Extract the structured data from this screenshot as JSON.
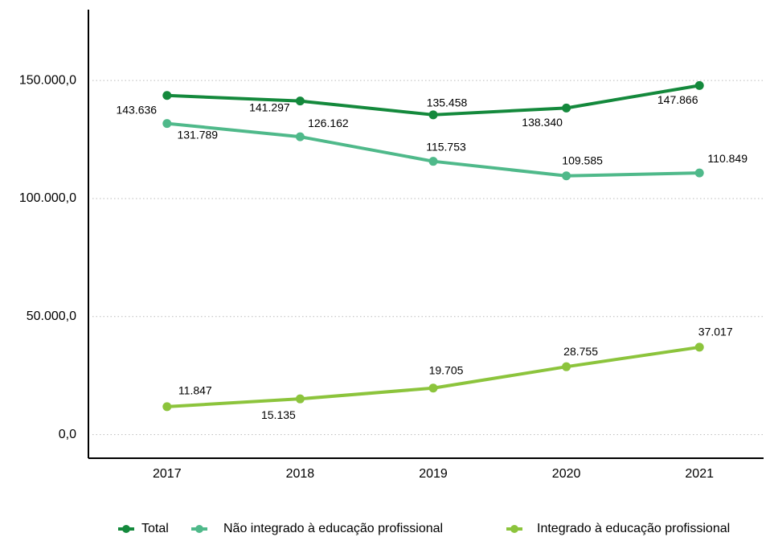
{
  "chart_data": {
    "type": "line",
    "categories": [
      "2017",
      "2018",
      "2019",
      "2020",
      "2021"
    ],
    "series": [
      {
        "name": "Total",
        "color": "#14893c",
        "values": [
          143636,
          141297,
          135458,
          138340,
          147866
        ],
        "value_labels": [
          "143.636",
          "141.297",
          "135.458",
          "138.340",
          "147.866"
        ]
      },
      {
        "name": "Não integrado à educação profissional",
        "color": "#4fb98a",
        "values": [
          131789,
          126162,
          115753,
          109585,
          110849
        ],
        "value_labels": [
          "131.789",
          "126.162",
          "115.753",
          "109.585",
          "110.849"
        ]
      },
      {
        "name": "Integrado à educação profissional",
        "color": "#8cc43c",
        "values": [
          11847,
          15135,
          19705,
          28755,
          37017
        ],
        "value_labels": [
          "11.847",
          "15.135",
          "19.705",
          "28.755",
          "37.017"
        ]
      }
    ],
    "ylim": [
      -10000,
      180000
    ],
    "yticks": [
      {
        "value": 0,
        "label": "0,0"
      },
      {
        "value": 50000,
        "label": "50.000,0"
      },
      {
        "value": 100000,
        "label": "100.000,0"
      },
      {
        "value": 150000,
        "label": "150.000,0"
      }
    ],
    "grid": true,
    "legend": "bottom"
  }
}
